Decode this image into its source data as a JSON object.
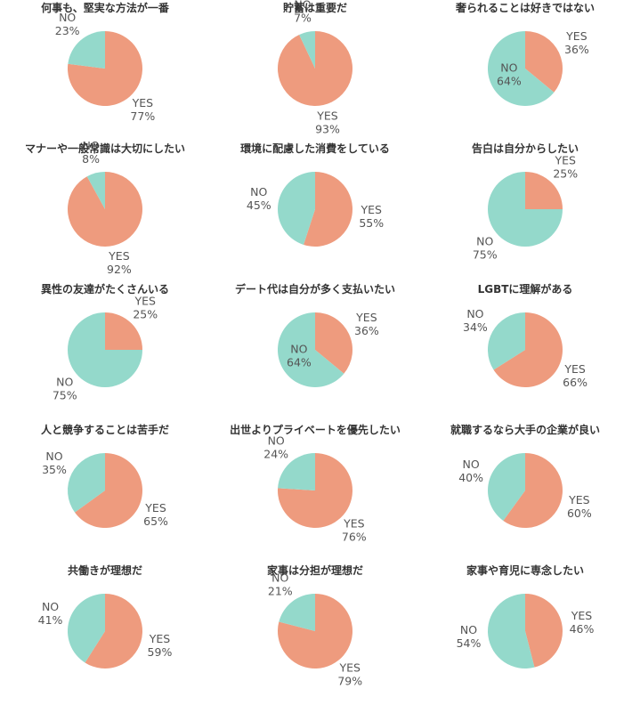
{
  "colors": {
    "yes": "#EE9B7E",
    "no": "#94D9CB",
    "text": "#555555",
    "title": "#333333"
  },
  "chart_data": [
    {
      "type": "pie",
      "title": "何事も、堅実な方法が一番",
      "labels": [
        "YES",
        "NO"
      ],
      "values": [
        77,
        23
      ],
      "value_labels": [
        "77%",
        "23%"
      ]
    },
    {
      "type": "pie",
      "title": "貯蓄は重要だ",
      "labels": [
        "YES",
        "NO"
      ],
      "values": [
        93,
        7
      ],
      "value_labels": [
        "93%",
        "7%"
      ]
    },
    {
      "type": "pie",
      "title": "奢られることは好きではない",
      "labels": [
        "YES",
        "NO"
      ],
      "values": [
        36,
        64
      ],
      "value_labels": [
        "36%",
        "64%"
      ]
    },
    {
      "type": "pie",
      "title": "マナーや一般常識は大切にしたい",
      "labels": [
        "YES",
        "NO"
      ],
      "values": [
        92,
        8
      ],
      "value_labels": [
        "92%",
        "8%"
      ]
    },
    {
      "type": "pie",
      "title": "環境に配慮した消費をしている",
      "labels": [
        "YES",
        "NO"
      ],
      "values": [
        55,
        45
      ],
      "value_labels": [
        "55%",
        "45%"
      ]
    },
    {
      "type": "pie",
      "title": "告白は自分からしたい",
      "labels": [
        "YES",
        "NO"
      ],
      "values": [
        25,
        75
      ],
      "value_labels": [
        "25%",
        "75%"
      ]
    },
    {
      "type": "pie",
      "title": "異性の友達がたくさんいる",
      "labels": [
        "YES",
        "NO"
      ],
      "values": [
        25,
        75
      ],
      "value_labels": [
        "25%",
        "75%"
      ]
    },
    {
      "type": "pie",
      "title": "デート代は自分が多く支払いたい",
      "labels": [
        "YES",
        "NO"
      ],
      "values": [
        36,
        64
      ],
      "value_labels": [
        "36%",
        "64%"
      ]
    },
    {
      "type": "pie",
      "title": "LGBTに理解がある",
      "labels": [
        "YES",
        "NO"
      ],
      "values": [
        66,
        34
      ],
      "value_labels": [
        "66%",
        "34%"
      ]
    },
    {
      "type": "pie",
      "title": "人と競争することは苦手だ",
      "labels": [
        "YES",
        "NO"
      ],
      "values": [
        65,
        35
      ],
      "value_labels": [
        "65%",
        "35%"
      ]
    },
    {
      "type": "pie",
      "title": "出世よりプライベートを優先したい",
      "labels": [
        "YES",
        "NO"
      ],
      "values": [
        76,
        24
      ],
      "value_labels": [
        "76%",
        "24%"
      ]
    },
    {
      "type": "pie",
      "title": "就職するなら大手の企業が良い",
      "labels": [
        "YES",
        "NO"
      ],
      "values": [
        60,
        40
      ],
      "value_labels": [
        "60%",
        "40%"
      ]
    },
    {
      "type": "pie",
      "title": "共働きが理想だ",
      "labels": [
        "YES",
        "NO"
      ],
      "values": [
        59,
        41
      ],
      "value_labels": [
        "59%",
        "41%"
      ]
    },
    {
      "type": "pie",
      "title": "家事は分担が理想だ",
      "labels": [
        "YES",
        "NO"
      ],
      "values": [
        79,
        21
      ],
      "value_labels": [
        "79%",
        "21%"
      ]
    },
    {
      "type": "pie",
      "title": "家事や育児に専念したい",
      "labels": [
        "YES",
        "NO"
      ],
      "values": [
        46,
        54
      ],
      "value_labels": [
        "46%",
        "54%"
      ]
    }
  ]
}
